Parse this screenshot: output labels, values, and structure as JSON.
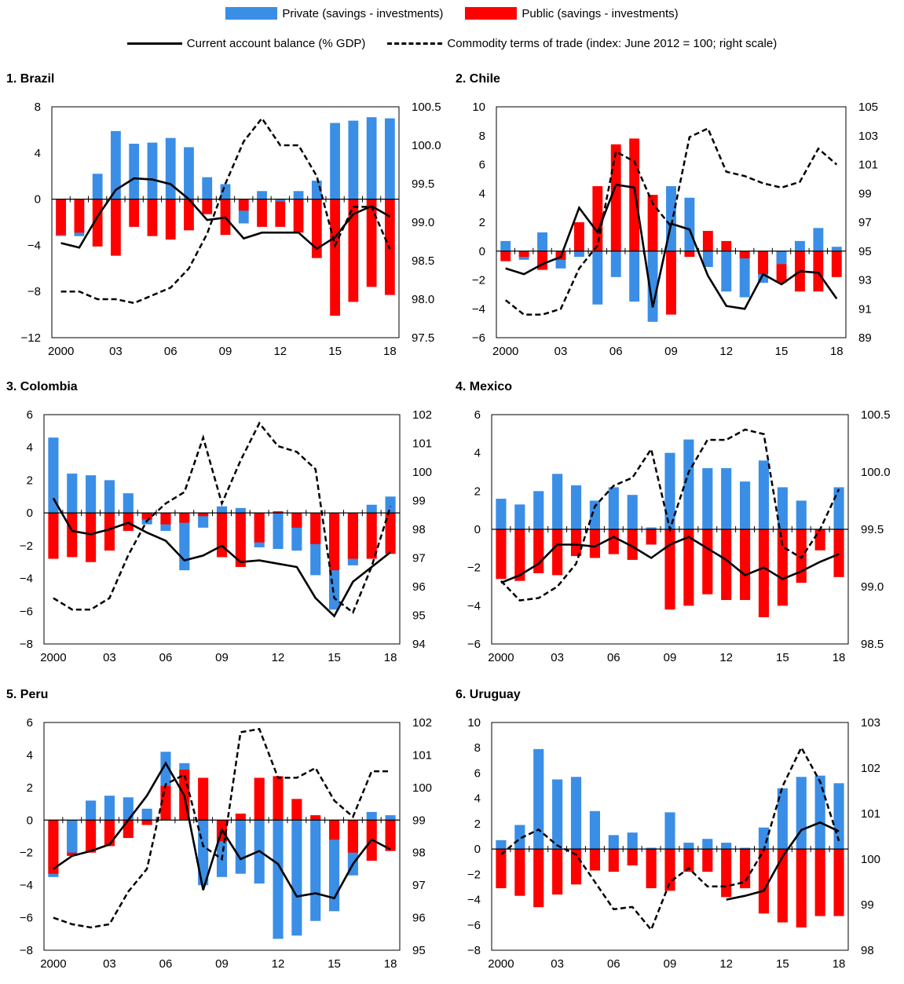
{
  "legend": {
    "private": {
      "label": "Private (savings - investments)",
      "color": "#3a8ee6"
    },
    "public": {
      "label": "Public (savings - investments)",
      "color": "#ff0000"
    },
    "current_account": {
      "label": "Current account balance (% GDP)",
      "color": "#000000"
    },
    "commodity_tot": {
      "label": "Commodity terms of trade (index: June 2012 = 100; right scale)",
      "color": "#000000"
    }
  },
  "x_tick_labels": [
    "2000",
    "03",
    "06",
    "09",
    "12",
    "15",
    "18"
  ],
  "chart_data": [
    {
      "type": "bar",
      "title": "1. Brazil",
      "years": [
        2000,
        2001,
        2002,
        2003,
        2004,
        2005,
        2006,
        2007,
        2008,
        2009,
        2010,
        2011,
        2012,
        2013,
        2014,
        2015,
        2016,
        2017,
        2018
      ],
      "ylim_left": [
        -12,
        8
      ],
      "yticks_left": [
        -12,
        -8,
        -4,
        0,
        4,
        8
      ],
      "ylim_right": [
        97.5,
        100.5
      ],
      "yticks_right": [
        97.5,
        98.0,
        98.5,
        99.0,
        99.5,
        100.0,
        100.5
      ],
      "series": [
        {
          "name": "Private (savings - investments)",
          "values": [
            -3.2,
            -3.2,
            2.2,
            5.9,
            4.8,
            4.9,
            5.3,
            4.5,
            1.9,
            1.3,
            -2.1,
            0.7,
            -0.2,
            0.7,
            1.6,
            6.6,
            6.8,
            7.1,
            7.0
          ]
        },
        {
          "name": "Public (savings - investments)",
          "values": [
            -3.1,
            -2.9,
            -4.1,
            -4.9,
            -2.4,
            -3.2,
            -3.5,
            -2.7,
            -1.3,
            -3.1,
            -1.0,
            -2.4,
            -2.4,
            -2.9,
            -5.1,
            -10.1,
            -8.9,
            -7.6,
            -8.3
          ]
        },
        {
          "name": "Current account balance (% GDP)",
          "values": [
            -3.8,
            -4.2,
            -1.5,
            0.8,
            1.8,
            1.7,
            1.3,
            0.0,
            -1.8,
            -1.6,
            -3.4,
            -2.9,
            -2.9,
            -2.9,
            -4.3,
            -3.3,
            -1.3,
            -0.6,
            -1.5
          ]
        },
        {
          "name": "Commodity terms of trade (index: June 2012 = 100; right scale)",
          "axis": "right",
          "values": [
            98.1,
            98.1,
            98.0,
            98.0,
            97.95,
            98.05,
            98.15,
            98.4,
            98.85,
            99.5,
            100.05,
            100.35,
            100.0,
            100.0,
            99.6,
            98.7,
            99.2,
            99.2,
            98.65
          ]
        }
      ]
    },
    {
      "type": "bar",
      "title": "2. Chile",
      "years": [
        2000,
        2001,
        2002,
        2003,
        2004,
        2005,
        2006,
        2007,
        2008,
        2009,
        2010,
        2011,
        2012,
        2013,
        2014,
        2015,
        2016,
        2017,
        2018
      ],
      "ylim_left": [
        -6,
        10
      ],
      "yticks_left": [
        -6,
        -4,
        -2,
        0,
        2,
        4,
        6,
        8,
        10
      ],
      "ylim_right": [
        89,
        105
      ],
      "yticks_right": [
        89,
        91,
        93,
        95,
        97,
        99,
        101,
        103,
        105
      ],
      "series": [
        {
          "name": "Private (savings - investments)",
          "values": [
            0.7,
            -0.6,
            1.3,
            -1.2,
            -0.4,
            -3.7,
            -1.8,
            -3.5,
            -4.9,
            4.5,
            3.7,
            -1.1,
            -2.8,
            -3.2,
            -2.2,
            -0.9,
            0.7,
            1.6,
            0.3
          ]
        },
        {
          "name": "Public (savings - investments)",
          "values": [
            -0.7,
            -0.4,
            -1.3,
            -0.6,
            2.0,
            4.5,
            7.4,
            7.8,
            3.9,
            -4.4,
            -0.4,
            1.4,
            0.7,
            -0.5,
            -1.6,
            -2.2,
            -2.8,
            -2.8,
            -1.8
          ]
        },
        {
          "name": "Current account balance (% GDP)",
          "values": [
            -1.2,
            -1.6,
            -0.9,
            -0.4,
            3.0,
            1.3,
            4.6,
            4.4,
            -3.9,
            1.9,
            1.5,
            -1.7,
            -3.8,
            -4.0,
            -1.6,
            -2.3,
            -1.4,
            -1.5,
            -3.3
          ]
        },
        {
          "name": "Commodity terms of trade (index: June 2012 = 100; right scale)",
          "axis": "right",
          "values": [
            91.6,
            90.6,
            90.6,
            91.0,
            93.8,
            95.4,
            101.9,
            101.2,
            98.3,
            96.7,
            102.9,
            103.5,
            100.5,
            100.2,
            99.7,
            99.4,
            99.8,
            102.1,
            101.0
          ]
        }
      ]
    },
    {
      "type": "bar",
      "title": "3. Colombia",
      "years": [
        2000,
        2001,
        2002,
        2003,
        2004,
        2005,
        2006,
        2007,
        2008,
        2009,
        2010,
        2011,
        2012,
        2013,
        2014,
        2015,
        2016,
        2017,
        2018
      ],
      "ylim_left": [
        -8,
        6
      ],
      "yticks_left": [
        -8,
        -6,
        -4,
        -2,
        0,
        2,
        4,
        6
      ],
      "ylim_right": [
        94,
        102
      ],
      "yticks_right": [
        94,
        95,
        96,
        97,
        98,
        99,
        100,
        101,
        102
      ],
      "series": [
        {
          "name": "Private (savings - investments)",
          "values": [
            4.6,
            2.4,
            2.3,
            2.0,
            1.2,
            -0.7,
            -1.1,
            -3.5,
            -0.9,
            0.4,
            0.3,
            -2.1,
            -2.2,
            -2.3,
            -3.8,
            -5.9,
            -3.2,
            0.5,
            1.0
          ]
        },
        {
          "name": "Public (savings - investments)",
          "values": [
            -2.8,
            -2.7,
            -3.0,
            -2.3,
            -1.1,
            -0.4,
            -0.7,
            -0.6,
            -0.2,
            -2.7,
            -3.3,
            -1.8,
            0.1,
            -0.9,
            -1.9,
            -3.5,
            -2.8,
            -2.8,
            -2.5
          ]
        },
        {
          "name": "Current account balance (% GDP)",
          "values": [
            0.9,
            -1.1,
            -1.3,
            -1.0,
            -0.6,
            -1.2,
            -1.7,
            -2.9,
            -2.6,
            -2.0,
            -3.0,
            -2.9,
            -3.1,
            -3.3,
            -5.2,
            -6.3,
            -4.2,
            -3.3,
            -2.4
          ]
        },
        {
          "name": "Commodity terms of trade (index: June 2012 = 100; right scale)",
          "axis": "right",
          "values": [
            95.6,
            95.2,
            95.2,
            95.6,
            97.1,
            98.3,
            98.9,
            99.3,
            101.2,
            98.9,
            100.4,
            101.7,
            100.9,
            100.7,
            100.1,
            95.6,
            95.1,
            96.7,
            98.8
          ]
        }
      ]
    },
    {
      "type": "bar",
      "title": "4. Mexico",
      "years": [
        2000,
        2001,
        2002,
        2003,
        2004,
        2005,
        2006,
        2007,
        2008,
        2009,
        2010,
        2011,
        2012,
        2013,
        2014,
        2015,
        2016,
        2017,
        2018
      ],
      "ylim_left": [
        -6,
        6
      ],
      "yticks_left": [
        -6,
        -4,
        -2,
        0,
        2,
        4,
        6
      ],
      "ylim_right": [
        98.5,
        100.5
      ],
      "yticks_right": [
        98.5,
        99.0,
        99.5,
        100.0,
        100.5
      ],
      "series": [
        {
          "name": "Private (savings - investments)",
          "values": [
            1.6,
            1.3,
            2.0,
            2.9,
            2.3,
            1.5,
            2.2,
            1.8,
            0.1,
            4.0,
            4.7,
            3.2,
            3.2,
            2.5,
            3.6,
            2.2,
            1.5,
            0.0,
            2.2
          ]
        },
        {
          "name": "Public (savings - investments)",
          "values": [
            -2.6,
            -2.7,
            -2.3,
            -2.4,
            -1.4,
            -1.5,
            -1.3,
            -1.6,
            -0.8,
            -4.2,
            -4.0,
            -3.4,
            -3.7,
            -3.7,
            -4.6,
            -4.0,
            -2.8,
            -1.1,
            -2.5
          ]
        },
        {
          "name": "Current account balance (% GDP)",
          "values": [
            -2.8,
            -2.4,
            -1.8,
            -0.8,
            -0.8,
            -0.9,
            -0.4,
            -0.9,
            -1.5,
            -0.8,
            -0.4,
            -1.0,
            -1.6,
            -2.4,
            -2.0,
            -2.6,
            -2.2,
            -1.7,
            -1.3
          ]
        },
        {
          "name": "Commodity terms of trade (index: June 2012 = 100; right scale)",
          "axis": "right",
          "values": [
            99.05,
            98.88,
            98.9,
            99.0,
            99.2,
            99.7,
            99.88,
            99.95,
            100.2,
            99.5,
            100.0,
            100.28,
            100.28,
            100.37,
            100.33,
            99.35,
            99.25,
            99.5,
            99.85
          ]
        }
      ]
    },
    {
      "type": "bar",
      "title": "5. Peru",
      "years": [
        2000,
        2001,
        2002,
        2003,
        2004,
        2005,
        2006,
        2007,
        2008,
        2009,
        2010,
        2011,
        2012,
        2013,
        2014,
        2015,
        2016,
        2017,
        2018
      ],
      "ylim_left": [
        -8,
        6
      ],
      "yticks_left": [
        -8,
        -6,
        -4,
        -2,
        0,
        2,
        4,
        6
      ],
      "ylim_right": [
        95,
        102
      ],
      "yticks_right": [
        95,
        96,
        97,
        98,
        99,
        100,
        101,
        102
      ],
      "series": [
        {
          "name": "Private (savings - investments)",
          "values": [
            -3.5,
            -2.0,
            1.2,
            1.5,
            1.4,
            0.7,
            4.2,
            3.5,
            -4.0,
            -3.5,
            -3.3,
            -3.9,
            -7.3,
            -7.1,
            -6.2,
            -5.6,
            -3.4,
            0.5,
            0.3
          ]
        },
        {
          "name": "Public (savings - investments)",
          "values": [
            -3.3,
            -2.2,
            -2.0,
            -1.6,
            -1.1,
            -0.3,
            2.1,
            3.1,
            2.6,
            -1.3,
            0.4,
            2.6,
            2.7,
            1.3,
            0.3,
            -1.2,
            -2.0,
            -2.5,
            -1.9
          ]
        },
        {
          "name": "Current account balance (% GDP)",
          "values": [
            -3.0,
            -2.2,
            -1.9,
            -1.5,
            0.0,
            1.5,
            3.5,
            1.5,
            -4.3,
            -0.6,
            -2.4,
            -1.9,
            -2.7,
            -4.7,
            -4.5,
            -4.8,
            -2.7,
            -1.2,
            -1.8
          ]
        },
        {
          "name": "Commodity terms of trade (index: June 2012 = 100; right scale)",
          "axis": "right",
          "values": [
            96.0,
            95.8,
            95.7,
            95.8,
            96.8,
            97.5,
            100.1,
            100.4,
            98.2,
            97.8,
            101.7,
            101.8,
            100.3,
            100.3,
            100.6,
            99.6,
            99.1,
            100.5,
            100.5
          ]
        }
      ]
    },
    {
      "type": "bar",
      "title": "6. Uruguay",
      "years": [
        2000,
        2001,
        2002,
        2003,
        2004,
        2005,
        2006,
        2007,
        2008,
        2009,
        2010,
        2011,
        2012,
        2013,
        2014,
        2015,
        2016,
        2017,
        2018
      ],
      "ylim_left": [
        -8,
        10
      ],
      "yticks_left": [
        -8,
        -6,
        -4,
        -2,
        0,
        2,
        4,
        6,
        8,
        10
      ],
      "ylim_right": [
        98,
        103
      ],
      "yticks_right": [
        98,
        99,
        100,
        101,
        102,
        103
      ],
      "series": [
        {
          "name": "Private (savings - investments)",
          "values": [
            0.7,
            1.9,
            7.9,
            5.5,
            5.7,
            3.0,
            1.1,
            1.3,
            0.1,
            2.9,
            0.5,
            0.8,
            0.5,
            0.1,
            1.7,
            4.8,
            5.7,
            5.8,
            5.2
          ]
        },
        {
          "name": "Public (savings - investments)",
          "values": [
            -3.1,
            -3.7,
            -4.6,
            -3.6,
            -2.8,
            -1.7,
            -1.8,
            -1.3,
            -3.1,
            -3.3,
            -1.8,
            -1.8,
            -3.8,
            -3.1,
            -5.1,
            -5.8,
            -6.2,
            -5.3,
            -5.3
          ]
        },
        {
          "name": "Current account balance (% GDP)",
          "values": [
            null,
            null,
            null,
            null,
            null,
            null,
            null,
            null,
            null,
            null,
            null,
            null,
            -4.0,
            -3.7,
            -3.3,
            -0.6,
            1.5,
            2.1,
            1.4
          ]
        },
        {
          "name": "Commodity terms of trade (index: June 2012 = 100; right scale)",
          "axis": "right",
          "values": [
            100.1,
            100.45,
            100.65,
            100.3,
            100.1,
            99.5,
            98.9,
            98.95,
            98.45,
            99.5,
            99.8,
            99.4,
            99.4,
            99.5,
            100.2,
            101.6,
            102.45,
            101.7,
            100.4
          ]
        }
      ]
    }
  ]
}
